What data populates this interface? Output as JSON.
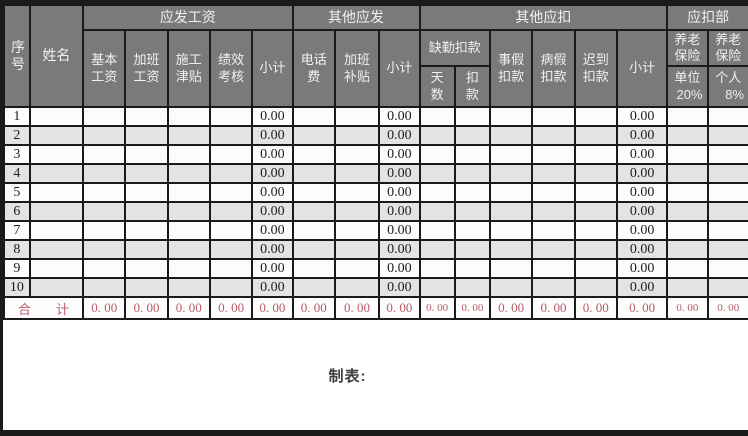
{
  "colors": {
    "header_bg": "#7a7a7c",
    "header_text": "#f0f0f2",
    "row_alt_bg": "#e3e3e5",
    "border": "#1a1a1c",
    "value_text": "#1e1e1e",
    "total_value_text": "#b95f69"
  },
  "table": {
    "header": {
      "serial": "序号",
      "name": "姓名",
      "group_payable": "应发工资",
      "group_other_payable": "其他应发",
      "group_other_deduction": "其他应扣",
      "group_deduction_part": "应扣部",
      "base_salary": "基本工资",
      "overtime_salary": "加班工资",
      "construction_allowance": "施工津贴",
      "performance_review": "绩效考核",
      "subtotal": "小计",
      "phone_fee": "电话费",
      "overtime_allowance": "加班补贴",
      "absence_group": "缺勤扣款",
      "absence_days": "天数",
      "absence_amount": "扣款",
      "personal_leave": "事假扣款",
      "sick_leave": "病假扣款",
      "late_arrival": "迟到扣款",
      "pension_employer_title": "养老保险",
      "pension_employer_line": "单位",
      "pension_employer_rate": "20%",
      "pension_personal_title": "养老保险",
      "pension_personal_line": "个人",
      "pension_personal_rate": "8%"
    },
    "row_field_order": [
      "num",
      "name",
      "base_salary",
      "overtime_salary",
      "construction_allowance",
      "performance_review",
      "subtotal_payable",
      "phone_fee",
      "overtime_allowance",
      "subtotal_other_payable",
      "absence_days",
      "absence_amount",
      "personal_leave",
      "sick_leave",
      "late_arrival",
      "subtotal_deduction",
      "pension_employer",
      "pension_personal"
    ],
    "rows": [
      {
        "num": "1",
        "subtotal_payable": "0.00",
        "subtotal_other_payable": "0.00",
        "subtotal_deduction": "0.00"
      },
      {
        "num": "2",
        "subtotal_payable": "0.00",
        "subtotal_other_payable": "0.00",
        "subtotal_deduction": "0.00"
      },
      {
        "num": "3",
        "subtotal_payable": "0.00",
        "subtotal_other_payable": "0.00",
        "subtotal_deduction": "0.00"
      },
      {
        "num": "4",
        "subtotal_payable": "0.00",
        "subtotal_other_payable": "0.00",
        "subtotal_deduction": "0.00"
      },
      {
        "num": "5",
        "subtotal_payable": "0.00",
        "subtotal_other_payable": "0.00",
        "subtotal_deduction": "0.00"
      },
      {
        "num": "6",
        "subtotal_payable": "0.00",
        "subtotal_other_payable": "0.00",
        "subtotal_deduction": "0.00"
      },
      {
        "num": "7",
        "subtotal_payable": "0.00",
        "subtotal_other_payable": "0.00",
        "subtotal_deduction": "0.00"
      },
      {
        "num": "8",
        "subtotal_payable": "0.00",
        "subtotal_other_payable": "0.00",
        "subtotal_deduction": "0.00"
      },
      {
        "num": "9",
        "subtotal_payable": "0.00",
        "subtotal_other_payable": "0.00",
        "subtotal_deduction": "0.00"
      },
      {
        "num": "10",
        "subtotal_payable": "0.00",
        "subtotal_other_payable": "0.00",
        "subtotal_deduction": "0.00"
      }
    ],
    "total_row": {
      "label": "合计",
      "base_salary": "0. 00",
      "overtime_salary": "0. 00",
      "construction_allowance": "0. 00",
      "performance_review": "0. 00",
      "subtotal_payable": "0. 00",
      "phone_fee": "0. 00",
      "overtime_allowance": "0. 00",
      "subtotal_other_payable": "0. 00",
      "absence_days": "0. 00",
      "absence_amount": "0. 00",
      "personal_leave": "0. 00",
      "sick_leave": "0. 00",
      "late_arrival": "0. 00",
      "subtotal_deduction": "0. 00",
      "pension_employer": "0. 00",
      "pension_personal": "0. 00"
    }
  },
  "footer": {
    "maker_label": "制表:"
  }
}
